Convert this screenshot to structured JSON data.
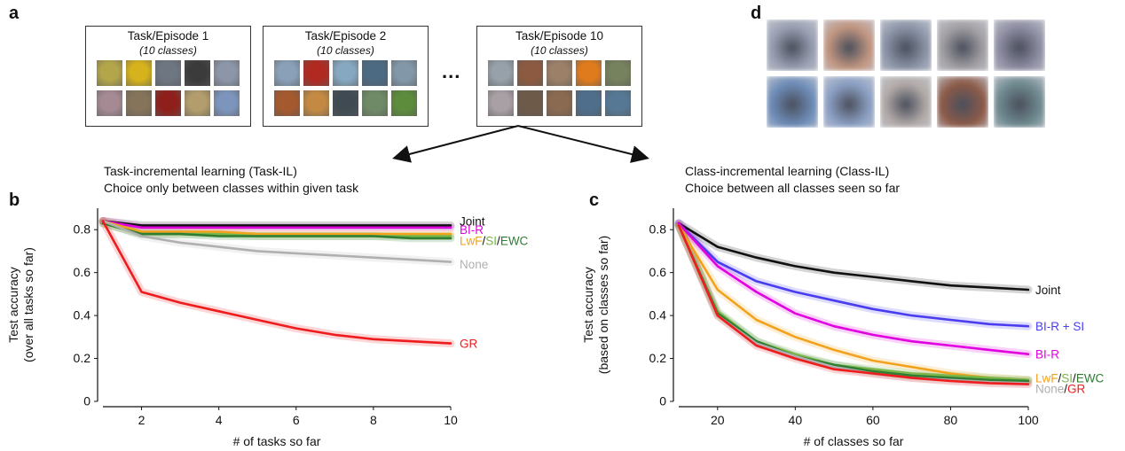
{
  "panels": {
    "a": "a",
    "b": "b",
    "c": "c",
    "d": "d"
  },
  "tasks": [
    {
      "title": "Task/Episode 1",
      "subtitle": "(10 classes)"
    },
    {
      "title": "Task/Episode 2",
      "subtitle": "(10 classes)"
    },
    {
      "title": "Task/Episode 10",
      "subtitle": "(10 classes)"
    }
  ],
  "ellipsis": "...",
  "task_il": {
    "line1": "Task-incremental learning (Task-IL)",
    "line2": "Choice only between classes within given task"
  },
  "class_il": {
    "line1": "Class-incremental learning (Class-IL)",
    "line2": "Choice between all classes seen so far"
  },
  "thumb_colors": {
    "task1": [
      "#b3a54a",
      "#d6b21c",
      "#6e7682",
      "#3b3b3b",
      "#8c96a8",
      "#a58a93",
      "#85745a",
      "#8f1f1a",
      "#b39d6c",
      "#7d95bd"
    ],
    "task2": [
      "#8aa0b8",
      "#b02a22",
      "#86a8c0",
      "#4c6a82",
      "#8297a8",
      "#a5592e",
      "#c48a43",
      "#3f4a52",
      "#6f8a66",
      "#5d8c3c"
    ],
    "task10": [
      "#97a1aa",
      "#8c5a40",
      "#9c8068",
      "#e07b1d",
      "#76815d",
      "#a9a0a5",
      "#6e5a48",
      "#8a6a50",
      "#4f6e8c",
      "#567894"
    ]
  },
  "generated_colors": [
    "#9aa0b3",
    "#c19580",
    "#8c95a8",
    "#a3a0a4",
    "#8f8ea3",
    "#6d8cb8",
    "#8ca0c4",
    "#b2aaa8",
    "#8c5a48",
    "#6f8a90"
  ],
  "chart_data": [
    {
      "type": "line",
      "panel": "b",
      "xlabel": "# of tasks so far",
      "ylabel": "Test accuracy",
      "ylabel2": "(over all tasks so far)",
      "xlim": [
        1,
        10
      ],
      "ylim": [
        0,
        0.9
      ],
      "xticks": [
        2,
        4,
        6,
        8,
        10
      ],
      "yticks": [
        0,
        0.2,
        0.4,
        0.6,
        0.8
      ],
      "x": [
        1,
        2,
        3,
        4,
        5,
        6,
        7,
        8,
        9,
        10
      ],
      "series": [
        {
          "name": "Joint",
          "color": "#111111",
          "values": [
            0.84,
            0.82,
            0.82,
            0.82,
            0.82,
            0.82,
            0.82,
            0.82,
            0.82,
            0.82
          ]
        },
        {
          "name": "BI-R",
          "color": "#e000e0",
          "values": [
            0.84,
            0.81,
            0.81,
            0.81,
            0.81,
            0.81,
            0.81,
            0.81,
            0.81,
            0.81
          ]
        },
        {
          "name": "LwF",
          "color": "#f2a21c",
          "values": [
            0.84,
            0.79,
            0.79,
            0.79,
            0.78,
            0.78,
            0.78,
            0.78,
            0.78,
            0.78
          ]
        },
        {
          "name": "SI",
          "color": "#7ab648",
          "values": [
            0.83,
            0.78,
            0.78,
            0.78,
            0.77,
            0.77,
            0.77,
            0.77,
            0.77,
            0.77
          ]
        },
        {
          "name": "EWC",
          "color": "#2e7d32",
          "values": [
            0.83,
            0.78,
            0.78,
            0.77,
            0.77,
            0.77,
            0.77,
            0.77,
            0.76,
            0.76
          ]
        },
        {
          "name": "None",
          "color": "#b0b0b0",
          "values": [
            0.84,
            0.77,
            0.74,
            0.72,
            0.7,
            0.69,
            0.68,
            0.67,
            0.66,
            0.65
          ]
        },
        {
          "name": "GR",
          "color": "#ee1c1c",
          "values": [
            0.84,
            0.51,
            0.46,
            0.42,
            0.38,
            0.34,
            0.31,
            0.29,
            0.28,
            0.27
          ]
        }
      ],
      "legend": [
        {
          "parts": [
            {
              "text": "Joint",
              "color": "#111111"
            }
          ],
          "y": 0.84
        },
        {
          "parts": [
            {
              "text": "BI-R",
              "color": "#e000e0"
            }
          ],
          "y": 0.8
        },
        {
          "parts": [
            {
              "text": "LwF",
              "color": "#f2a21c"
            },
            {
              "text": "/",
              "color": "#111111"
            },
            {
              "text": "SI",
              "color": "#7ab648"
            },
            {
              "text": "/",
              "color": "#111111"
            },
            {
              "text": "EWC",
              "color": "#2e7d32"
            }
          ],
          "y": 0.75
        },
        {
          "parts": [
            {
              "text": "None",
              "color": "#b0b0b0"
            }
          ],
          "y": 0.64
        },
        {
          "parts": [
            {
              "text": "GR",
              "color": "#ee1c1c"
            }
          ],
          "y": 0.27
        }
      ]
    },
    {
      "type": "line",
      "panel": "c",
      "xlabel": "# of classes so far",
      "ylabel": "Test accuracy",
      "ylabel2": "(based on classes so far)",
      "xlim": [
        10,
        100
      ],
      "ylim": [
        0,
        0.9
      ],
      "xticks": [
        20,
        40,
        60,
        80,
        100
      ],
      "yticks": [
        0,
        0.2,
        0.4,
        0.6,
        0.8
      ],
      "x": [
        10,
        20,
        30,
        40,
        50,
        60,
        70,
        80,
        90,
        100
      ],
      "series": [
        {
          "name": "Joint",
          "color": "#111111",
          "values": [
            0.83,
            0.72,
            0.67,
            0.63,
            0.6,
            0.58,
            0.56,
            0.54,
            0.53,
            0.52
          ]
        },
        {
          "name": "BI-R + SI",
          "color": "#4a3df0",
          "values": [
            0.83,
            0.65,
            0.56,
            0.51,
            0.47,
            0.43,
            0.4,
            0.38,
            0.36,
            0.35
          ]
        },
        {
          "name": "BI-R",
          "color": "#e000e0",
          "values": [
            0.83,
            0.63,
            0.51,
            0.41,
            0.35,
            0.31,
            0.28,
            0.26,
            0.24,
            0.22
          ]
        },
        {
          "name": "LwF",
          "color": "#f2a21c",
          "values": [
            0.82,
            0.52,
            0.38,
            0.3,
            0.24,
            0.19,
            0.16,
            0.13,
            0.11,
            0.1
          ]
        },
        {
          "name": "SI",
          "color": "#7ab648",
          "values": [
            0.82,
            0.42,
            0.28,
            0.22,
            0.17,
            0.15,
            0.13,
            0.12,
            0.11,
            0.1
          ]
        },
        {
          "name": "EWC",
          "color": "#2e7d32",
          "values": [
            0.82,
            0.41,
            0.28,
            0.21,
            0.17,
            0.14,
            0.12,
            0.11,
            0.1,
            0.095
          ]
        },
        {
          "name": "None",
          "color": "#b0b0b0",
          "values": [
            0.82,
            0.4,
            0.27,
            0.21,
            0.16,
            0.13,
            0.11,
            0.1,
            0.09,
            0.085
          ]
        },
        {
          "name": "GR",
          "color": "#ee1c1c",
          "values": [
            0.82,
            0.4,
            0.26,
            0.2,
            0.15,
            0.13,
            0.11,
            0.095,
            0.085,
            0.08
          ]
        }
      ],
      "legend": [
        {
          "parts": [
            {
              "text": "Joint",
              "color": "#111111"
            }
          ],
          "y": 0.52
        },
        {
          "parts": [
            {
              "text": "BI-R + SI",
              "color": "#4a3df0"
            }
          ],
          "y": 0.35
        },
        {
          "parts": [
            {
              "text": "BI-R",
              "color": "#e000e0"
            }
          ],
          "y": 0.22
        },
        {
          "parts": [
            {
              "text": "LwF",
              "color": "#f2a21c"
            },
            {
              "text": "/",
              "color": "#111111"
            },
            {
              "text": "SI",
              "color": "#7ab648"
            },
            {
              "text": "/",
              "color": "#111111"
            },
            {
              "text": "EWC",
              "color": "#2e7d32"
            }
          ],
          "y": 0.11
        },
        {
          "parts": [
            {
              "text": "None",
              "color": "#b0b0b0"
            },
            {
              "text": "/",
              "color": "#111111"
            },
            {
              "text": "GR",
              "color": "#ee1c1c"
            }
          ],
          "y": 0.06
        }
      ]
    }
  ]
}
